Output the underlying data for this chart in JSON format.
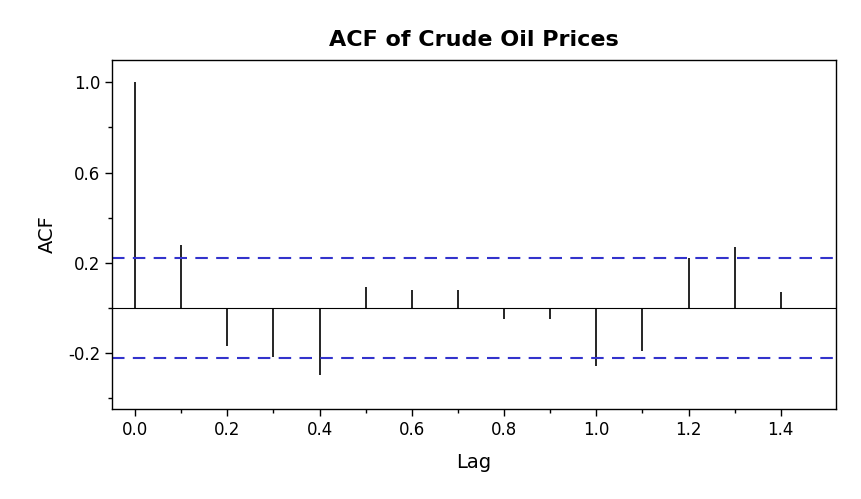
{
  "title": "ACF of Crude Oil Prices",
  "xlabel": "Lag",
  "ylabel": "ACF",
  "xlim": [
    -0.05,
    1.52
  ],
  "ylim": [
    -0.45,
    1.1
  ],
  "yticks": [
    -0.2,
    0.2,
    0.6,
    1.0
  ],
  "ytick_labels": [
    "-0.2",
    "0.2",
    "0.6",
    "1.0"
  ],
  "xticks": [
    0.0,
    0.2,
    0.4,
    0.6,
    0.8,
    1.0,
    1.2,
    1.4
  ],
  "ci": 0.222,
  "lag_scale": 0.1,
  "acf_values": [
    1.0,
    0.28,
    -0.17,
    -0.22,
    -0.3,
    0.09,
    0.08,
    0.08,
    -0.05,
    -0.05,
    -0.26,
    -0.19,
    0.22,
    0.27,
    0.07
  ],
  "bar_color": "#000000",
  "ci_color": "#3333CC",
  "bg_color": "#FFFFFF",
  "title_fontsize": 16,
  "label_fontsize": 14,
  "tick_fontsize": 12,
  "title_fontweight": "bold"
}
